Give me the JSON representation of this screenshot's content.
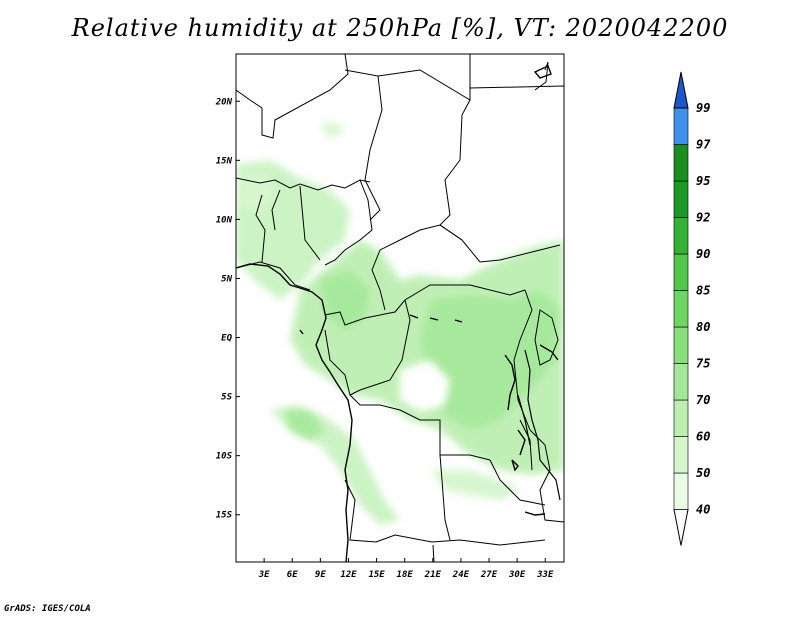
{
  "title": "Relative humidity at 250hPa [%], VT: 2020042200",
  "credit": "GrADS: IGES/COLA",
  "map": {
    "lon_range": [
      0,
      35
    ],
    "lat_range": [
      -19,
      24
    ],
    "x_ticks": [
      "3E",
      "6E",
      "9E",
      "12E",
      "15E",
      "18E",
      "21E",
      "24E",
      "27E",
      "30E",
      "33E"
    ],
    "x_tick_values": [
      3,
      6,
      9,
      12,
      15,
      18,
      21,
      24,
      27,
      30,
      33
    ],
    "y_ticks": [
      "20N",
      "15N",
      "10N",
      "5N",
      "EQ",
      "5S",
      "10S",
      "15S"
    ],
    "y_tick_values": [
      20,
      15,
      10,
      5,
      0,
      -5,
      -10,
      -15
    ]
  },
  "colorbar": {
    "levels": [
      "40",
      "50",
      "60",
      "70",
      "75",
      "80",
      "85",
      "90",
      "92",
      "95",
      "97",
      "99"
    ],
    "colors": [
      "#eafbe6",
      "#d4f6cc",
      "#bdefb3",
      "#a3e898",
      "#88e07b",
      "#6dd561",
      "#52c84a",
      "#35b236",
      "#1d9926",
      "#1a8f1e",
      "#3f92ea",
      "#1f6fd8",
      "#1b57c8"
    ],
    "under_color": "#ffffff"
  }
}
